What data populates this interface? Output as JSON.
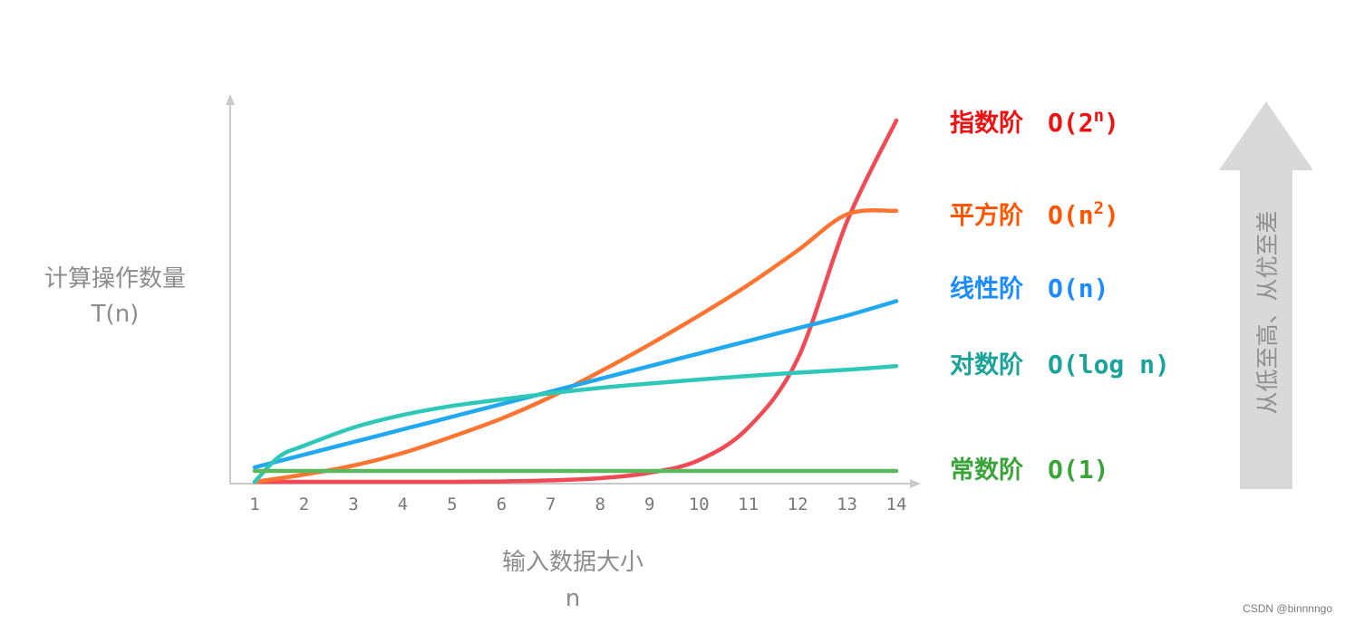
{
  "ylabel": {
    "line1": "计算操作数量",
    "line2": "T(n)"
  },
  "xlabel": {
    "line1": "输入数据大小",
    "line2": "n"
  },
  "arrow_text": "从低至高、从优至差",
  "watermark": "CSDN @binnnngo",
  "legend": [
    {
      "name": "指数阶",
      "expr_main": "O(2",
      "expr_sup": "n",
      "expr_tail": ")",
      "color": "#ee1111"
    },
    {
      "name": "平方阶",
      "expr_main": "O(n",
      "expr_sup": "2",
      "expr_tail": ")",
      "color": "#ff5500"
    },
    {
      "name": "线性阶",
      "expr_main": "O(n)",
      "expr_sup": "",
      "expr_tail": "",
      "color": "#1a8cff"
    },
    {
      "name": "对数阶",
      "expr_main": "O(log n)",
      "expr_sup": "",
      "expr_tail": "",
      "color": "#1aa39a"
    },
    {
      "name": "常数阶",
      "expr_main": "O(1)",
      "expr_sup": "",
      "expr_tail": "",
      "color": "#3aa43a"
    }
  ],
  "chart_data": {
    "type": "line",
    "x_ticks": [
      1,
      2,
      3,
      4,
      5,
      6,
      7,
      8,
      9,
      10,
      11,
      12,
      13,
      14
    ],
    "xlim": [
      1,
      14
    ],
    "ylim": [
      0,
      1
    ],
    "grid": false,
    "legend_position": "right",
    "series": [
      {
        "key": "exponential",
        "name": "指数阶",
        "color": "#f04a55",
        "points": [
          [
            1,
            0
          ],
          [
            2,
            0
          ],
          [
            3,
            0
          ],
          [
            4,
            0
          ],
          [
            5,
            0
          ],
          [
            6,
            0.001
          ],
          [
            7,
            0.004
          ],
          [
            8,
            0.01
          ],
          [
            9,
            0.025
          ],
          [
            10,
            0.06
          ],
          [
            11,
            0.15
          ],
          [
            12,
            0.34
          ],
          [
            13,
            0.72
          ],
          [
            14,
            1.0
          ]
        ]
      },
      {
        "key": "quadratic",
        "name": "平方阶",
        "color": "#ff7430",
        "points": [
          [
            1,
            0
          ],
          [
            2,
            0.02
          ],
          [
            3,
            0.045
          ],
          [
            4,
            0.08
          ],
          [
            5,
            0.125
          ],
          [
            6,
            0.175
          ],
          [
            7,
            0.235
          ],
          [
            8,
            0.305
          ],
          [
            9,
            0.38
          ],
          [
            10,
            0.46
          ],
          [
            11,
            0.545
          ],
          [
            12,
            0.64
          ],
          [
            13,
            0.74
          ],
          [
            14,
            0.75
          ]
        ]
      },
      {
        "key": "linear",
        "name": "线性阶",
        "color": "#20a8f0",
        "points": [
          [
            1,
            0.04
          ],
          [
            2,
            0.075
          ],
          [
            3,
            0.11
          ],
          [
            4,
            0.145
          ],
          [
            5,
            0.18
          ],
          [
            6,
            0.215
          ],
          [
            7,
            0.25
          ],
          [
            8,
            0.285
          ],
          [
            9,
            0.32
          ],
          [
            10,
            0.355
          ],
          [
            11,
            0.39
          ],
          [
            12,
            0.425
          ],
          [
            13,
            0.46
          ],
          [
            14,
            0.5
          ]
        ]
      },
      {
        "key": "logarithmic",
        "name": "对数阶",
        "color": "#2fc8b8",
        "points": [
          [
            1,
            0
          ],
          [
            1.5,
            0.07
          ],
          [
            2,
            0.1
          ],
          [
            3,
            0.15
          ],
          [
            4,
            0.185
          ],
          [
            5,
            0.21
          ],
          [
            6,
            0.228
          ],
          [
            7,
            0.245
          ],
          [
            8,
            0.26
          ],
          [
            9,
            0.272
          ],
          [
            10,
            0.283
          ],
          [
            11,
            0.293
          ],
          [
            12,
            0.302
          ],
          [
            13,
            0.31
          ],
          [
            14,
            0.32
          ]
        ]
      },
      {
        "key": "constant",
        "name": "常数阶",
        "color": "#5cb85c",
        "points": [
          [
            1,
            0.03
          ],
          [
            14,
            0.03
          ]
        ]
      }
    ]
  }
}
